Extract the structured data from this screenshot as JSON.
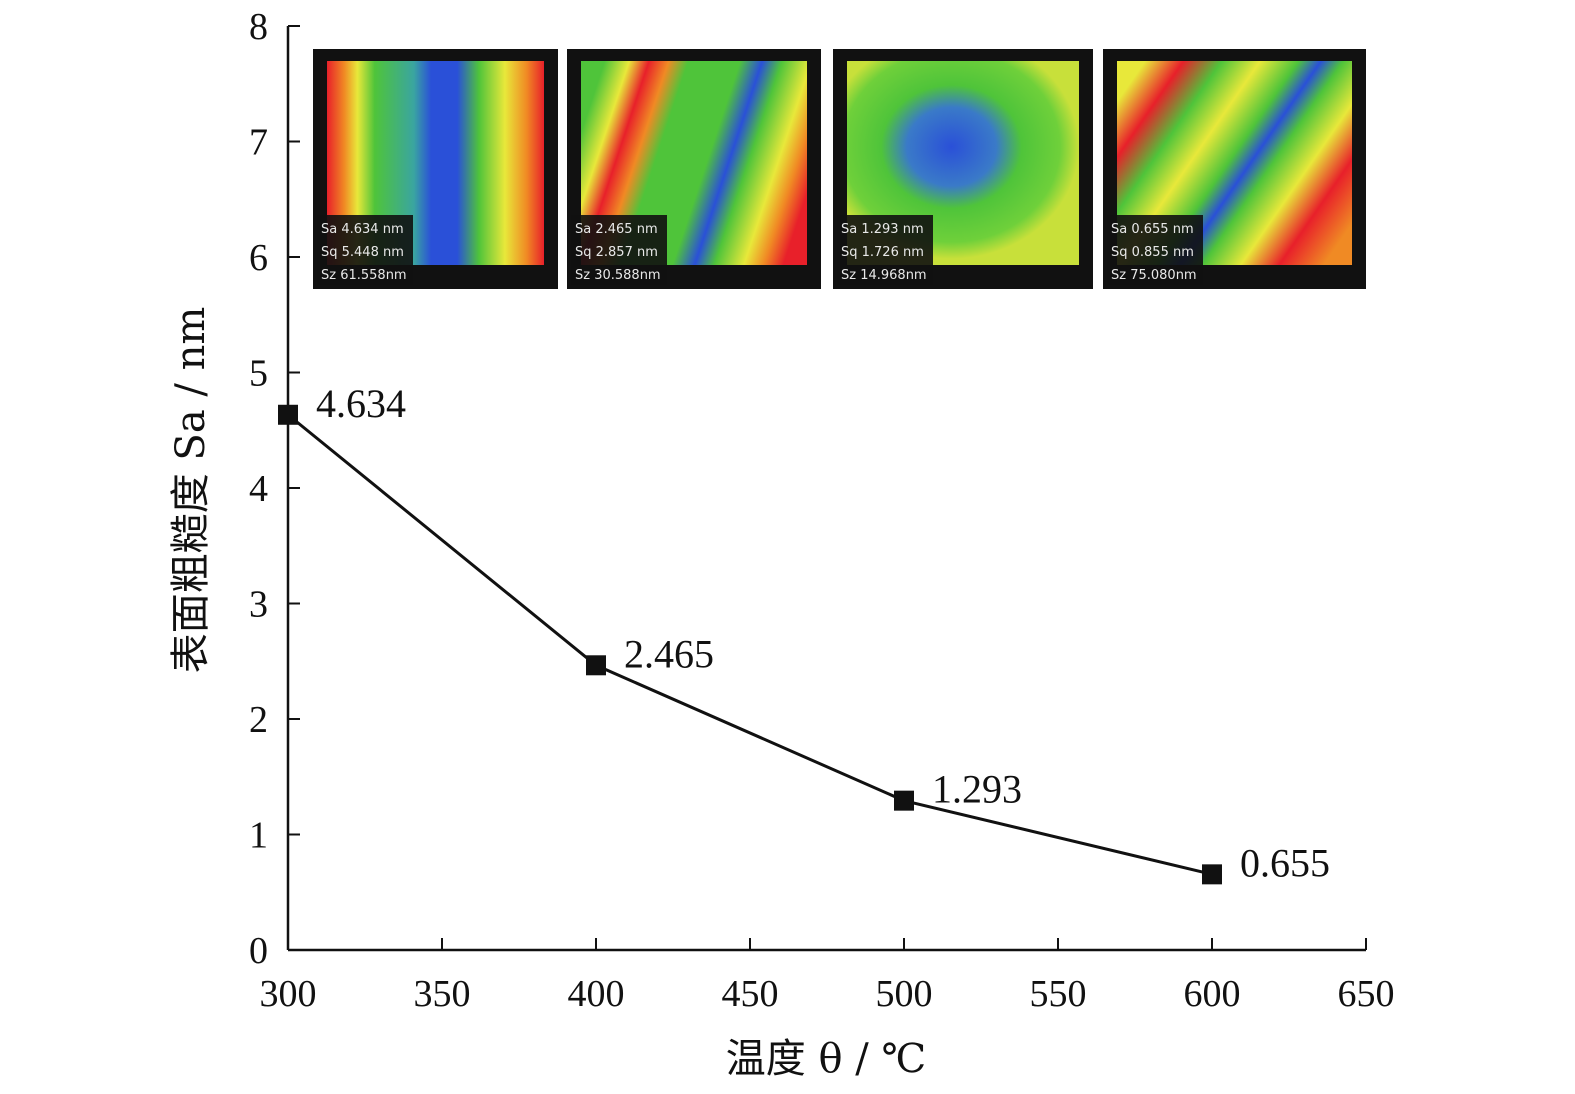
{
  "chart_data": {
    "type": "line",
    "x": [
      300,
      400,
      500,
      600
    ],
    "values": [
      4.634,
      2.465,
      1.293,
      0.655
    ],
    "data_labels": [
      "4.634",
      "2.465",
      "1.293",
      "0.655"
    ],
    "xlim": [
      300,
      650
    ],
    "ylim": [
      0,
      8
    ],
    "x_ticks": [
      "300",
      "350",
      "400",
      "450",
      "500",
      "550",
      "600",
      "650"
    ],
    "y_ticks": [
      "0",
      "1",
      "2",
      "3",
      "4",
      "5",
      "6",
      "7",
      "8"
    ],
    "xlabel": "温度 θ / ℃",
    "ylabel": "表面粗糙度 Sa / nm",
    "grid": false,
    "marker": "square",
    "insets": [
      {
        "scheme": "vertical-bands",
        "lines": [
          "Sa 4.634   nm",
          "Sq 5.448   nm",
          "Sz 61.558nm"
        ]
      },
      {
        "scheme": "tilted-bands",
        "lines": [
          "Sa 2.465   nm",
          "Sq 2.857   nm",
          "Sz 30.588nm"
        ]
      },
      {
        "scheme": "blob",
        "lines": [
          "Sa 1.293   nm",
          "Sq 1.726   nm",
          "Sz 14.968nm"
        ]
      },
      {
        "scheme": "streaks",
        "lines": [
          "Sa 0.655   nm",
          "Sq 0.855   nm",
          "Sz 75.080nm"
        ]
      }
    ],
    "colors": {
      "line": "#111111",
      "marker": "#111111",
      "inset_red": "#e8202a",
      "inset_orange": "#f08a24",
      "inset_yellow": "#e8e83a",
      "inset_green": "#4fc43a",
      "inset_blue": "#2a50d8",
      "inset_frame": "#111111"
    }
  }
}
